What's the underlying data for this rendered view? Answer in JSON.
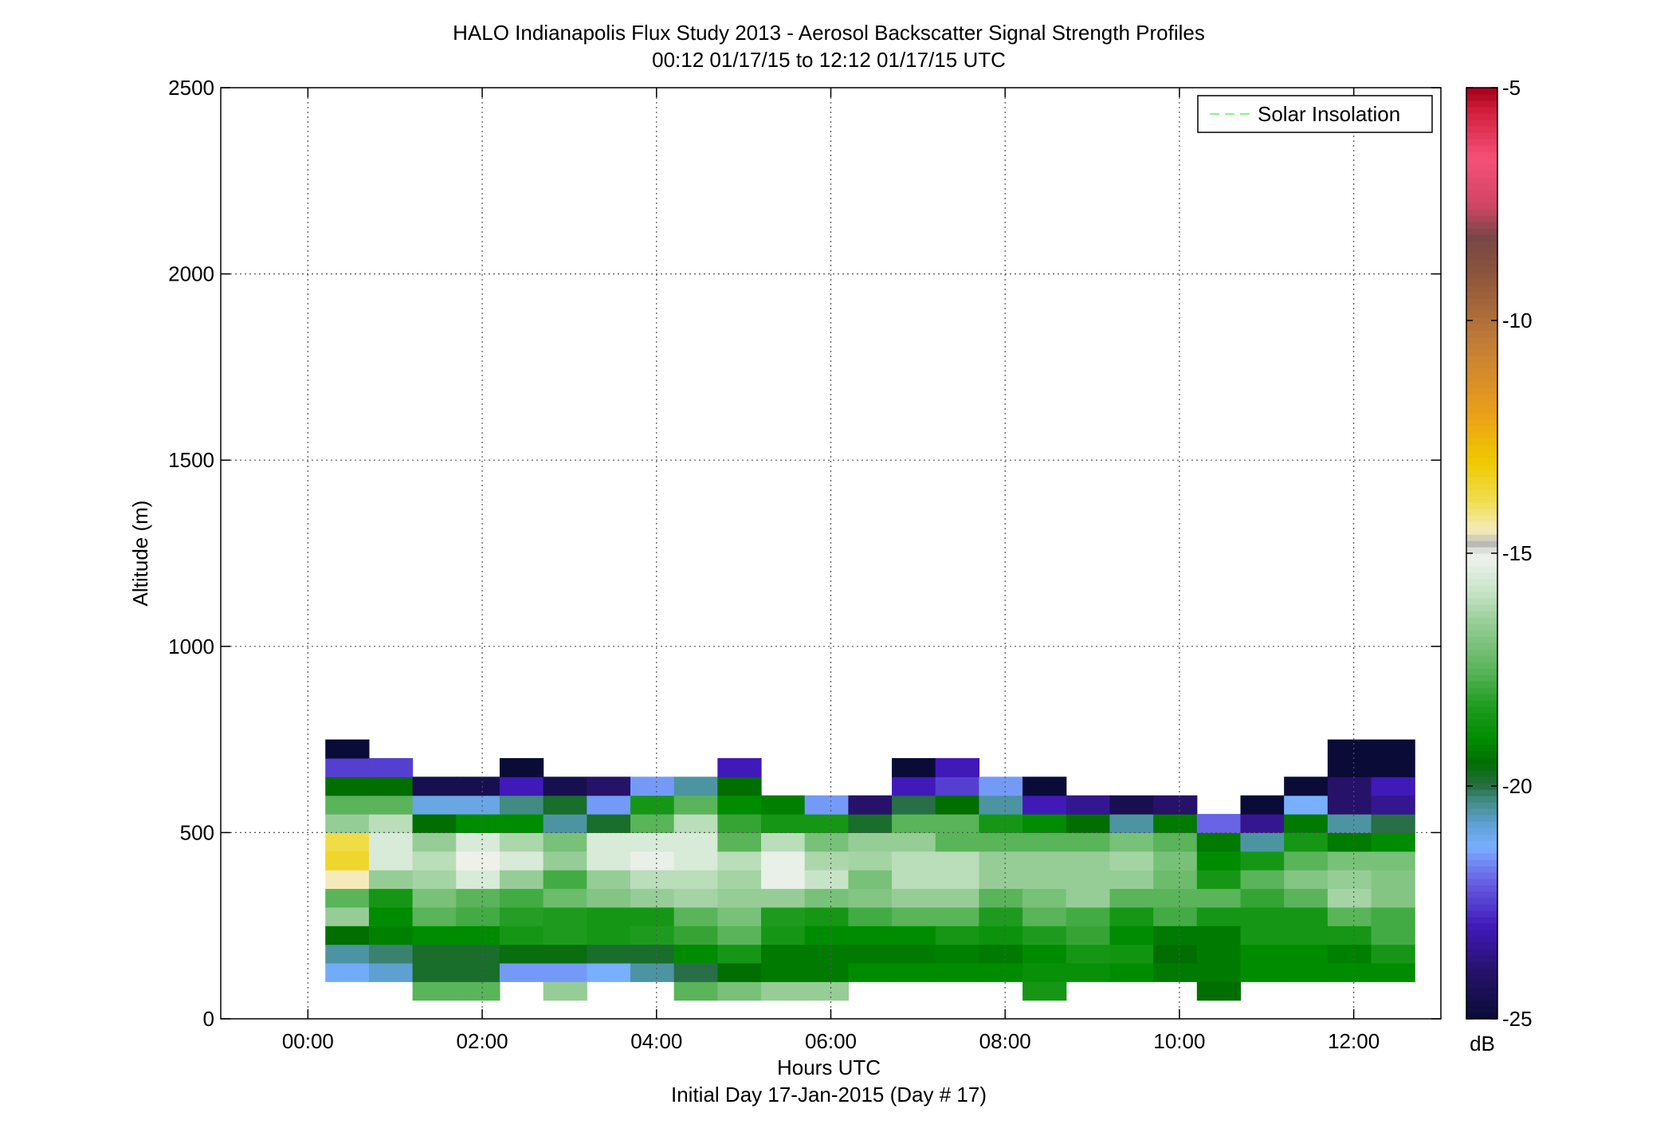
{
  "chart_data": {
    "type": "heatmap",
    "title": "HALO Indianapolis Flux Study 2013 - Aerosol Backscatter Signal Strength Profiles",
    "subtitle": "00:12 01/17/15 to 12:12 01/17/15  UTC",
    "xlabel": "Hours UTC",
    "xlabel2": "Initial Day 17-Jan-2015 (Day # 17)",
    "ylabel": "Altitude (m)",
    "x_tick_labels": [
      "00:00",
      "02:00",
      "04:00",
      "06:00",
      "08:00",
      "10:00",
      "12:00"
    ],
    "x_ticks_hours": [
      0,
      2,
      4,
      6,
      8,
      10,
      12
    ],
    "xlim_hours": [
      -1,
      13
    ],
    "y_tick_labels": [
      "0",
      "500",
      "1000",
      "1500",
      "2000",
      "2500"
    ],
    "y_ticks": [
      0,
      500,
      1000,
      1500,
      2000,
      2500
    ],
    "ylim": [
      0,
      2500
    ],
    "grid": true,
    "legend": {
      "entries": [
        "Solar Insolation"
      ],
      "placement": "top-right",
      "line_color": "#90ee90",
      "line_style": "dashed"
    },
    "colorbar": {
      "unit": "dB",
      "range": [
        -25,
        -5
      ],
      "tick_labels": [
        "-5",
        "-10",
        "-15",
        "-20",
        "-25"
      ],
      "ticks": [
        -5,
        -10,
        -15,
        -20,
        -25
      ]
    },
    "cell_time_start_hours": 0.2,
    "cell_time_step_hours": 0.5,
    "cell_alt_start_m": 50,
    "cell_alt_step_m": 50,
    "columns": [
      [
        null,
        -21.2,
        -20.5,
        -19.5,
        -16.5,
        -17.5,
        -14.5,
        -13.5,
        -13.8,
        -16.5,
        -17.5,
        -19.5,
        -22.5,
        -25
      ],
      [
        null,
        -20.8,
        -20.2,
        -19.2,
        -19.0,
        -18.5,
        -16.5,
        -15.5,
        -15.5,
        -16.0,
        -17.5,
        -19.5,
        -22.5,
        null
      ],
      [
        -17.5,
        -19.8,
        -19.8,
        -19.0,
        -17.5,
        -17.0,
        -16.3,
        -16.0,
        -16.5,
        -19.5,
        -21.0,
        -24.5,
        null,
        null
      ],
      [
        -17.5,
        -19.8,
        -19.8,
        -19.0,
        -17.8,
        -17.5,
        -15.5,
        -15.0,
        -15.5,
        -19.0,
        -21.0,
        -24.5,
        null,
        null
      ],
      [
        null,
        -21.5,
        -19.6,
        -18.5,
        -18.2,
        -17.8,
        -16.5,
        -15.5,
        -16.2,
        -19.0,
        -20.3,
        -23.0,
        -25,
        null
      ],
      [
        -16.5,
        -21.5,
        -19.6,
        -18.3,
        -18.3,
        -17.2,
        -17.8,
        -16.5,
        -17.0,
        -20.5,
        -19.8,
        -24.5,
        null,
        null
      ],
      [
        null,
        -21.3,
        -19.8,
        -18.5,
        -18.5,
        -16.8,
        -16.5,
        -15.5,
        -15.5,
        -19.8,
        -21.5,
        -24.0,
        null,
        null
      ],
      [
        null,
        -20.5,
        -19.8,
        -18.3,
        -18.5,
        -16.5,
        -16.0,
        -15.2,
        -15.5,
        -17.5,
        -18.5,
        -21.5,
        null,
        null
      ],
      [
        -17.5,
        -20.0,
        -19.0,
        -18.0,
        -17.5,
        -16.3,
        -16.0,
        -15.5,
        -15.5,
        -16.0,
        -17.5,
        -20.5,
        null,
        null
      ],
      [
        -17.0,
        -19.5,
        -18.5,
        -17.5,
        -17.0,
        -16.5,
        -16.3,
        -16.0,
        -17.5,
        -18.0,
        -19.0,
        -19.5,
        -23.0,
        null
      ],
      [
        -16.5,
        -19.3,
        -19.3,
        -18.5,
        -18.3,
        -16.5,
        -15.2,
        -15.2,
        -16.0,
        -18.5,
        -19.2,
        null,
        null,
        null
      ],
      [
        -16.5,
        -19.3,
        -19.3,
        -19.0,
        -18.5,
        -17.0,
        -15.8,
        -16.2,
        -17.0,
        -18.5,
        -21.5,
        null,
        null,
        null
      ],
      [
        null,
        -19.0,
        -19.3,
        -19.0,
        -17.8,
        -16.8,
        -17.0,
        -16.3,
        -16.5,
        -19.8,
        -24.0,
        null,
        null,
        null
      ],
      [
        null,
        -19.0,
        -19.3,
        -19.0,
        -17.5,
        -16.5,
        -16.0,
        -16.0,
        -16.5,
        -17.5,
        -20.0,
        -23.0,
        -25,
        null
      ],
      [
        null,
        -19.0,
        -19.2,
        -18.5,
        -17.5,
        -16.5,
        -16.0,
        -16.0,
        -17.5,
        -17.5,
        -19.5,
        -22.5,
        -23.0,
        null
      ],
      [
        null,
        -19.0,
        -19.3,
        -18.7,
        -18.3,
        -17.5,
        -16.5,
        -16.5,
        -17.5,
        -18.5,
        -20.5,
        -21.5,
        null,
        null
      ],
      [
        -18.5,
        -18.8,
        -19.0,
        -18.3,
        -17.5,
        -17.0,
        -16.5,
        -16.5,
        -17.5,
        -19.0,
        -23.0,
        -25,
        null,
        null
      ],
      [
        null,
        -18.8,
        -18.5,
        -18.0,
        -17.8,
        -16.5,
        -16.5,
        -16.5,
        -17.5,
        -19.5,
        -23.5,
        null,
        null,
        null
      ],
      [
        null,
        -19.0,
        -18.6,
        -19.0,
        -18.5,
        -17.5,
        -16.5,
        -16.3,
        -17.0,
        -20.5,
        -24.5,
        null,
        null,
        null
      ],
      [
        null,
        -19.3,
        -19.5,
        -19.3,
        -17.8,
        -17.5,
        -17.2,
        -17.0,
        -17.5,
        -19.3,
        -24.0,
        null,
        null,
        null
      ],
      [
        -19.5,
        -19.3,
        -19.3,
        -19.3,
        -18.5,
        -17.5,
        -18.5,
        -19.0,
        -19.3,
        -22.0,
        null,
        null,
        null,
        null
      ],
      [
        null,
        -19.0,
        -19.0,
        -18.5,
        -18.5,
        -18.0,
        -17.5,
        -18.5,
        -20.5,
        -23.5,
        -25,
        null,
        null,
        null
      ],
      [
        null,
        -19.0,
        -19.0,
        -18.5,
        -18.5,
        -17.5,
        -16.8,
        -17.5,
        -18.5,
        -19.3,
        -21.3,
        -25,
        null,
        null
      ],
      [
        null,
        -19.0,
        -19.2,
        -18.5,
        -17.5,
        -16.3,
        -16.5,
        -17.0,
        -19.3,
        -20.5,
        -24.0,
        -24.0,
        -25,
        -25
      ],
      [
        null,
        -19.0,
        -18.5,
        -17.8,
        -17.8,
        -16.8,
        -16.8,
        -17.0,
        -19.0,
        -20.0,
        -23.5,
        -23.0,
        -25,
        -25
      ]
    ]
  }
}
